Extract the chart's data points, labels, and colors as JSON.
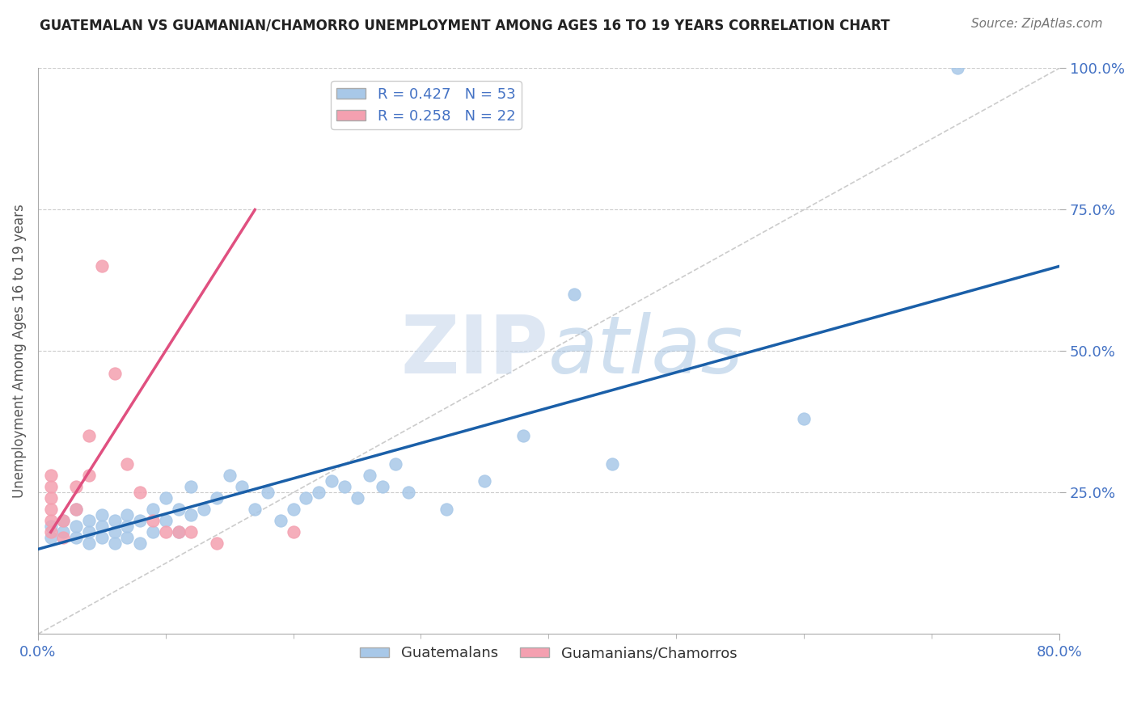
{
  "title": "GUATEMALAN VS GUAMANIAN/CHAMORRO UNEMPLOYMENT AMONG AGES 16 TO 19 YEARS CORRELATION CHART",
  "source": "Source: ZipAtlas.com",
  "ylabel": "Unemployment Among Ages 16 to 19 years",
  "xlim": [
    0,
    0.8
  ],
  "ylim": [
    0,
    1.0
  ],
  "ytick_positions": [
    0.25,
    0.5,
    0.75,
    1.0
  ],
  "ytick_labels": [
    "25.0%",
    "50.0%",
    "75.0%",
    "100.0%"
  ],
  "blue_R": 0.427,
  "blue_N": 53,
  "pink_R": 0.258,
  "pink_N": 22,
  "blue_color": "#a8c8e8",
  "pink_color": "#f4a0b0",
  "blue_line_color": "#1a5fa8",
  "pink_line_color": "#e05080",
  "ref_line_color": "#cccccc",
  "background_color": "#ffffff",
  "grid_color": "#cccccc",
  "blue_scatter_x": [
    0.01,
    0.01,
    0.02,
    0.02,
    0.03,
    0.03,
    0.03,
    0.04,
    0.04,
    0.04,
    0.05,
    0.05,
    0.05,
    0.06,
    0.06,
    0.06,
    0.07,
    0.07,
    0.07,
    0.08,
    0.08,
    0.09,
    0.09,
    0.1,
    0.1,
    0.11,
    0.11,
    0.12,
    0.12,
    0.13,
    0.14,
    0.15,
    0.16,
    0.17,
    0.18,
    0.19,
    0.2,
    0.21,
    0.22,
    0.23,
    0.24,
    0.25,
    0.26,
    0.27,
    0.28,
    0.29,
    0.32,
    0.35,
    0.38,
    0.42,
    0.45,
    0.6,
    0.72
  ],
  "blue_scatter_y": [
    0.17,
    0.19,
    0.18,
    0.2,
    0.17,
    0.19,
    0.22,
    0.16,
    0.18,
    0.2,
    0.17,
    0.19,
    0.21,
    0.16,
    0.18,
    0.2,
    0.17,
    0.19,
    0.21,
    0.16,
    0.2,
    0.18,
    0.22,
    0.2,
    0.24,
    0.18,
    0.22,
    0.21,
    0.26,
    0.22,
    0.24,
    0.28,
    0.26,
    0.22,
    0.25,
    0.2,
    0.22,
    0.24,
    0.25,
    0.27,
    0.26,
    0.24,
    0.28,
    0.26,
    0.3,
    0.25,
    0.22,
    0.27,
    0.35,
    0.6,
    0.3,
    0.38,
    1.0
  ],
  "pink_scatter_x": [
    0.01,
    0.01,
    0.01,
    0.01,
    0.01,
    0.01,
    0.02,
    0.02,
    0.03,
    0.03,
    0.04,
    0.04,
    0.05,
    0.06,
    0.07,
    0.08,
    0.09,
    0.1,
    0.11,
    0.12,
    0.14,
    0.2
  ],
  "pink_scatter_y": [
    0.18,
    0.2,
    0.22,
    0.24,
    0.26,
    0.28,
    0.2,
    0.17,
    0.26,
    0.22,
    0.28,
    0.35,
    0.65,
    0.46,
    0.3,
    0.25,
    0.2,
    0.18,
    0.18,
    0.18,
    0.16,
    0.18
  ],
  "blue_line_x": [
    0.0,
    0.8
  ],
  "blue_line_y": [
    0.15,
    0.65
  ],
  "pink_line_x": [
    0.01,
    0.17
  ],
  "pink_line_y": [
    0.18,
    0.75
  ],
  "ref_line_x": [
    0.0,
    0.8
  ],
  "ref_line_y": [
    0.0,
    1.0
  ]
}
